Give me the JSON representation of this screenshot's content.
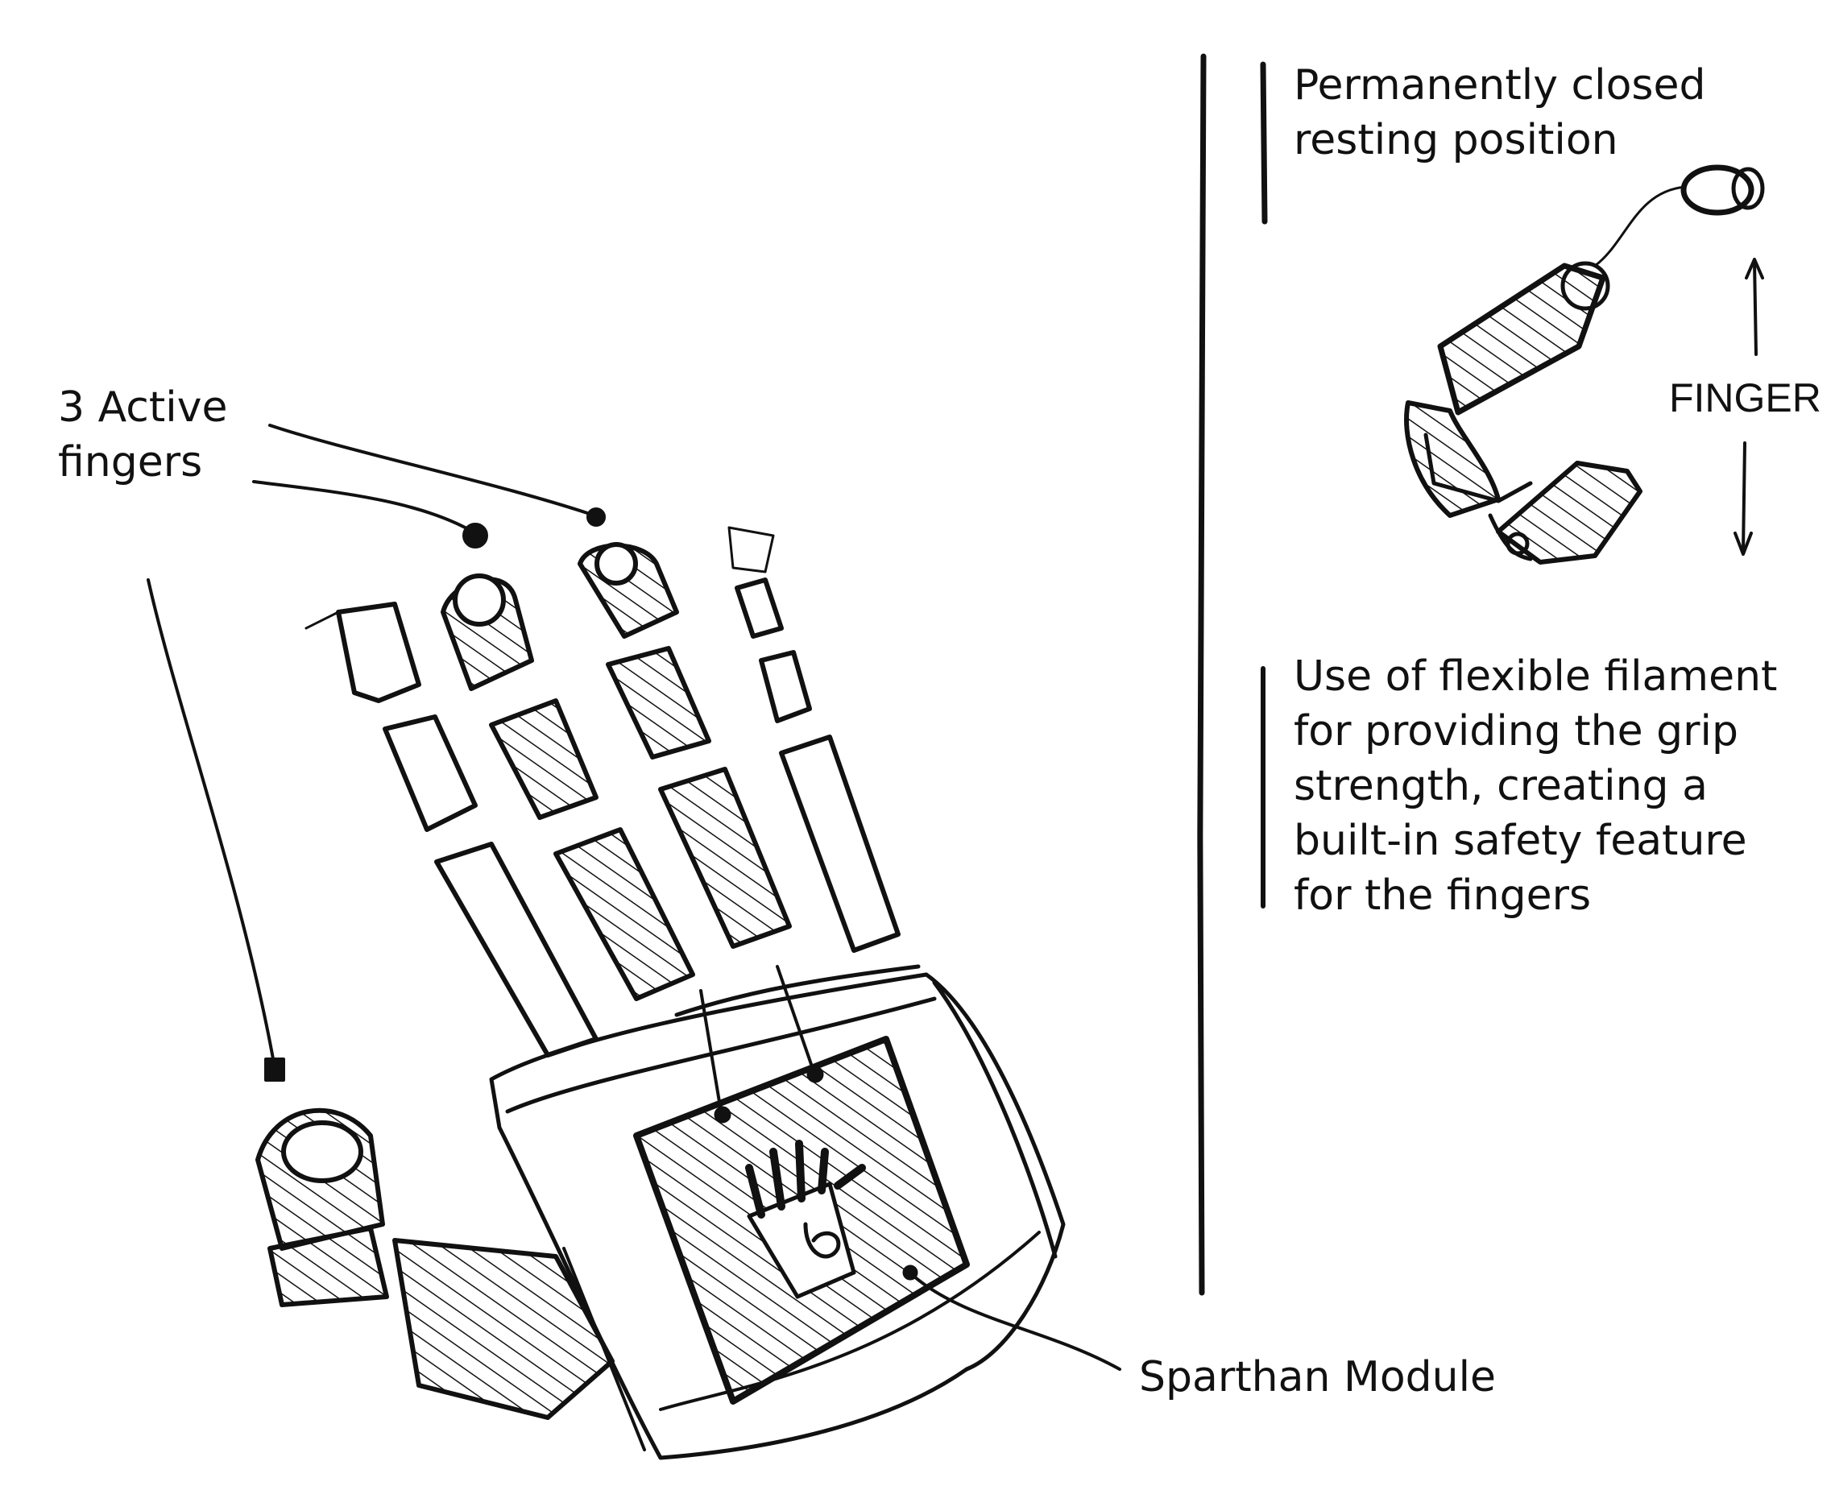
{
  "labels": {
    "active_fingers": [
      "3 Active",
      "fingers"
    ],
    "resting_position": [
      "Permanently closed",
      "resting position"
    ],
    "finger": "FINGER",
    "filament_note": [
      "Use of flexible filament",
      "for providing the grip",
      "strength, creating a",
      "built-in safety feature",
      "for the fingers"
    ],
    "module": "Sparthan Module"
  },
  "colors": {
    "ink": "#111111",
    "paper": "#ffffff"
  }
}
